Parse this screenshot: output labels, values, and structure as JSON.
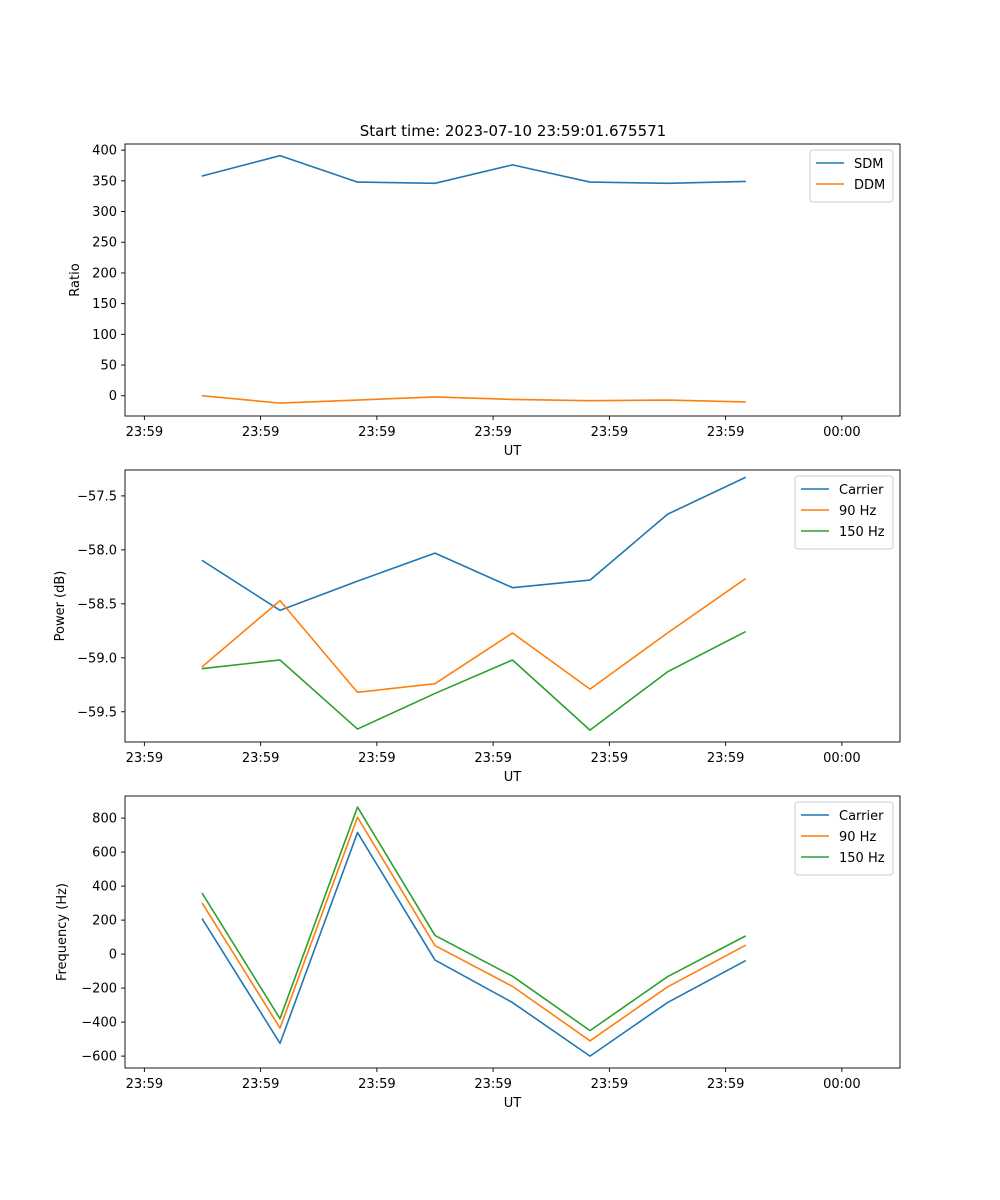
{
  "figure_title": "Start time: 2023-07-10 23:59:01.675571",
  "colors": {
    "blue": "#1f77b4",
    "orange": "#ff7f0e",
    "green": "#2ca02c"
  },
  "chart_data": [
    {
      "type": "line",
      "title": "Start time: 2023-07-10 23:59:01.675571",
      "xlabel": "UT",
      "ylabel": "Ratio",
      "x": [
        1,
        2,
        3,
        4,
        5,
        6,
        7,
        8
      ],
      "xlim": [
        0,
        10
      ],
      "x_ticks": [
        0.25,
        1.75,
        3.25,
        4.75,
        6.25,
        7.75,
        9.25
      ],
      "x_tick_labels": [
        "23:59",
        "23:59",
        "23:59",
        "23:59",
        "23:59",
        "23:59",
        "00:00"
      ],
      "ylim": [
        -33,
        410
      ],
      "y_ticks": [
        0,
        50,
        100,
        150,
        200,
        250,
        300,
        350,
        400
      ],
      "legend_position": "top-right",
      "series": [
        {
          "name": "SDM",
          "color": "#1f77b4",
          "values": [
            358,
            391,
            348,
            346,
            376,
            348,
            346,
            349
          ]
        },
        {
          "name": "DDM",
          "color": "#ff7f0e",
          "values": [
            0,
            -12,
            -7,
            -2,
            -6,
            -8,
            -7,
            -10
          ]
        }
      ]
    },
    {
      "type": "line",
      "title": "",
      "xlabel": "UT",
      "ylabel": "Power (dB)",
      "x": [
        1,
        2,
        3,
        4,
        5,
        6,
        7,
        8
      ],
      "xlim": [
        0,
        10
      ],
      "x_ticks": [
        0.25,
        1.75,
        3.25,
        4.75,
        6.25,
        7.75,
        9.25
      ],
      "x_tick_labels": [
        "23:59",
        "23:59",
        "23:59",
        "23:59",
        "23:59",
        "23:59",
        "00:00"
      ],
      "ylim": [
        -59.78,
        -57.26
      ],
      "y_ticks": [
        -59.5,
        -59.0,
        -58.5,
        -58.0,
        -57.5
      ],
      "y_tick_labels": [
        "−59.5",
        "−59.0",
        "−58.5",
        "−58.0",
        "−57.5"
      ],
      "legend_position": "top-right",
      "series": [
        {
          "name": "Carrier",
          "color": "#1f77b4",
          "values": [
            -58.1,
            -58.56,
            -58.29,
            -58.03,
            -58.35,
            -58.28,
            -57.67,
            -57.33
          ]
        },
        {
          "name": "90 Hz",
          "color": "#ff7f0e",
          "values": [
            -59.08,
            -58.47,
            -59.32,
            -59.24,
            -58.77,
            -59.29,
            -58.77,
            -58.27
          ]
        },
        {
          "name": "150 Hz",
          "color": "#2ca02c",
          "values": [
            -59.1,
            -59.02,
            -59.66,
            -59.33,
            -59.02,
            -59.67,
            -59.13,
            -58.76
          ]
        }
      ]
    },
    {
      "type": "line",
      "title": "",
      "xlabel": "UT",
      "ylabel": "Frequency (Hz)",
      "x": [
        1,
        2,
        3,
        4,
        5,
        6,
        7,
        8
      ],
      "xlim": [
        0,
        10
      ],
      "x_ticks": [
        0.25,
        1.75,
        3.25,
        4.75,
        6.25,
        7.75,
        9.25
      ],
      "x_tick_labels": [
        "23:59",
        "23:59",
        "23:59",
        "23:59",
        "23:59",
        "23:59",
        "00:00"
      ],
      "ylim": [
        -670,
        930
      ],
      "y_ticks": [
        -600,
        -400,
        -200,
        0,
        200,
        400,
        600,
        800
      ],
      "y_tick_labels": [
        "−600",
        "−400",
        "−200",
        "0",
        "200",
        "400",
        "600",
        "800"
      ],
      "legend_position": "top-right",
      "series": [
        {
          "name": "Carrier",
          "color": "#1f77b4",
          "values": [
            205,
            -525,
            715,
            -35,
            -285,
            -600,
            -285,
            -40
          ]
        },
        {
          "name": "90 Hz",
          "color": "#ff7f0e",
          "values": [
            297,
            -435,
            805,
            50,
            -190,
            -510,
            -193,
            50
          ]
        },
        {
          "name": "150 Hz",
          "color": "#2ca02c",
          "values": [
            355,
            -380,
            865,
            110,
            -130,
            -450,
            -133,
            105
          ]
        }
      ]
    }
  ]
}
